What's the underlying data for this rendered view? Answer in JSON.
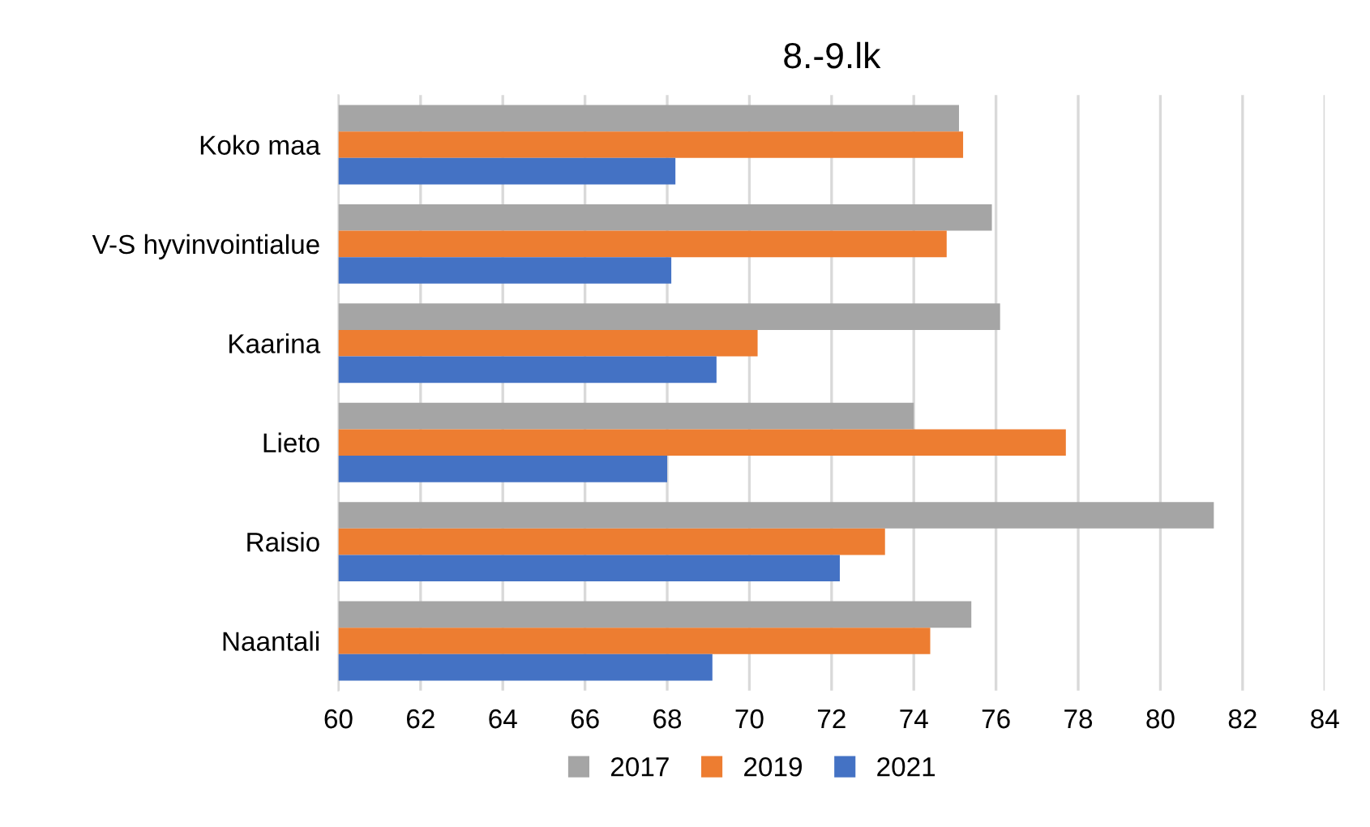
{
  "chart_data": {
    "type": "bar",
    "orientation": "horizontal",
    "title": "8.-9.lk",
    "categories": [
      "Koko maa",
      "V-S hyvinvointialue",
      "Kaarina",
      "Lieto",
      "Raisio",
      "Naantali"
    ],
    "series": [
      {
        "name": "2017",
        "color": "#a5a5a5",
        "values": [
          75.1,
          75.9,
          76.1,
          74.0,
          81.3,
          75.4
        ]
      },
      {
        "name": "2019",
        "color": "#ed7d31",
        "values": [
          75.2,
          74.8,
          70.2,
          77.7,
          73.3,
          74.4
        ]
      },
      {
        "name": "2021",
        "color": "#4472c4",
        "values": [
          68.2,
          68.1,
          69.2,
          68.0,
          72.2,
          69.1
        ]
      }
    ],
    "xlim": [
      60,
      84
    ],
    "xticks": [
      60,
      62,
      64,
      66,
      68,
      70,
      72,
      74,
      76,
      78,
      80,
      82,
      84
    ],
    "grid": "x",
    "legend": "bottom"
  }
}
